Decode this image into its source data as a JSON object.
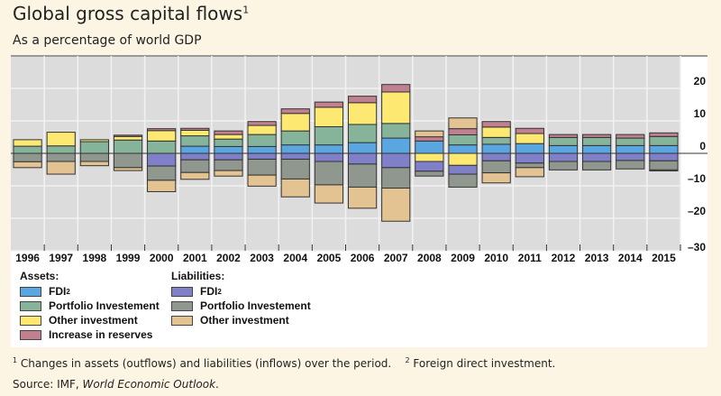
{
  "title": "Global gross capital flows",
  "title_sup": "1",
  "subtitle": "As a percentage of world GDP",
  "footnote1_mark": "1",
  "footnote1": "Changes in assets (outflows) and liabilities (inflows) over the period.",
  "footnote2_mark": "2",
  "footnote2": "Foreign direct investment.",
  "source_prefix": "Source: IMF, ",
  "source_italic": "World Economic Outlook",
  "source_suffix": ".",
  "legend": {
    "assets_heading": "Assets:",
    "liabilities_heading": "Liabilities:",
    "assets": [
      {
        "label": "FDI",
        "sup": "2",
        "color": "#5aa6e0"
      },
      {
        "label": "Portfolio Investement",
        "sup": "",
        "color": "#86b49a"
      },
      {
        "label": "Other investment",
        "sup": "",
        "color": "#fde872"
      },
      {
        "label": "Increase in reserves",
        "sup": "",
        "color": "#c08090"
      }
    ],
    "liabilities": [
      {
        "label": "FDI",
        "sup": "2",
        "color": "#8080c8"
      },
      {
        "label": "Portfolio Investement",
        "sup": "",
        "color": "#8f978e"
      },
      {
        "label": "Other investment",
        "sup": "",
        "color": "#e3c391"
      }
    ]
  },
  "chart_data": {
    "type": "bar",
    "stacked": true,
    "title": "Global gross capital flows",
    "subtitle": "As a percentage of world GDP",
    "categories": [
      "1996",
      "1997",
      "1998",
      "1999",
      "2000",
      "2001",
      "2002",
      "2003",
      "2004",
      "2005",
      "2006",
      "2007",
      "2008",
      "2009",
      "2010",
      "2011",
      "2012",
      "2013",
      "2014",
      "2015"
    ],
    "ylim": [
      -30,
      30
    ],
    "yticks": [
      20,
      10,
      0,
      -10,
      -20,
      -30
    ],
    "ytick_labels": [
      "20",
      "10",
      "0",
      "–10",
      "–20",
      "–30"
    ],
    "y_axis_side": "right",
    "grid": true,
    "series": [
      {
        "name": "Assets: FDI",
        "color": "#5aa6e0",
        "values": [
          0,
          0,
          0,
          0,
          0,
          2.2,
          2.1,
          2.1,
          2.6,
          2.6,
          3.3,
          4.7,
          3.8,
          2.6,
          2.8,
          3.0,
          2.4,
          2.4,
          2.4,
          2.4
        ]
      },
      {
        "name": "Assets: Portfolio Investement",
        "color": "#86b49a",
        "values": [
          2.2,
          2.3,
          3.6,
          4.1,
          3.8,
          3.2,
          2.3,
          3.7,
          4.3,
          5.6,
          5.6,
          4.5,
          0,
          3.1,
          2.1,
          0,
          2.5,
          2.5,
          2.3,
          2.8
        ]
      },
      {
        "name": "Assets: Other investment",
        "color": "#fde872",
        "values": [
          2.0,
          4.2,
          0.6,
          1.1,
          3.2,
          1.7,
          1.4,
          2.8,
          5.4,
          6.0,
          6.7,
          9.7,
          -2.5,
          -3.7,
          3.2,
          3.1,
          0,
          0,
          0,
          0
        ]
      },
      {
        "name": "Assets: Increase in reserves",
        "color": "#c08090",
        "values": [
          0,
          0,
          0,
          0.4,
          0.6,
          0.6,
          1.1,
          1.2,
          1.4,
          1.6,
          2.0,
          2.3,
          1.3,
          1.9,
          1.7,
          1.6,
          0.9,
          0.9,
          1.1,
          1.1
        ]
      },
      {
        "name": "Liabilities: FDI",
        "color": "#8080c8",
        "values": [
          0,
          0,
          0,
          0,
          -3.9,
          -2.0,
          -2.0,
          -1.8,
          -1.8,
          -2.5,
          -3.3,
          -4.4,
          -3.0,
          -2.7,
          -2.3,
          -3.0,
          -2.5,
          -2.5,
          -2.2,
          -2.3
        ]
      },
      {
        "name": "Liabilities: Portfolio Investement",
        "color": "#8f978e",
        "values": [
          -2.6,
          -2.5,
          -2.5,
          -4.4,
          -4.4,
          -3.9,
          -3.3,
          -4.9,
          -6.1,
          -7.2,
          -7.1,
          -6.3,
          -1.5,
          -4.0,
          -3.7,
          -1.4,
          -2.6,
          -2.6,
          -2.6,
          -2.8
        ]
      },
      {
        "name": "Liabilities: Other investment",
        "color": "#e3c391",
        "values": [
          -1.8,
          -3.9,
          -1.3,
          -0.9,
          -3.5,
          -2.1,
          -1.7,
          -3.4,
          -5.5,
          -5.6,
          -6.5,
          -10.2,
          1.8,
          3.3,
          -3.1,
          -2.8,
          0,
          0,
          0,
          -0.3
        ]
      }
    ]
  }
}
